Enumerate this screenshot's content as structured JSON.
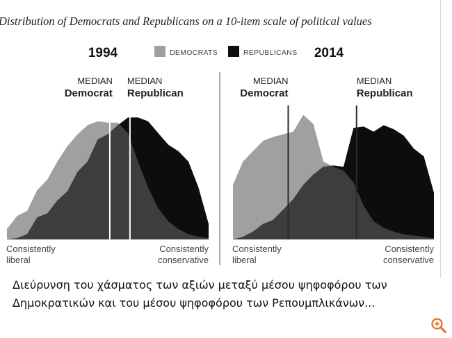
{
  "chart_data": {
    "type": "area",
    "title": "Distribution of Democrats and Republicans on a 10-item scale of political values",
    "legend": [
      {
        "name": "DEMOCRATS",
        "color": "#a0a0a0"
      },
      {
        "name": "REPUBLICANS",
        "color": "#0d0d0d"
      }
    ],
    "overlap_color": "#3d3d3d",
    "axis_left_label": [
      "Consistently",
      "liberal"
    ],
    "axis_right_label": [
      "Consistently",
      "conservative"
    ],
    "xlim": [
      0,
      20
    ],
    "ylim": [
      0,
      1
    ],
    "panels": [
      {
        "year": "1994",
        "median_democrat": 10.2,
        "median_republican": 12.2,
        "median_democrat_label": [
          "MEDIAN",
          "Democrat"
        ],
        "median_republican_label": [
          "MEDIAN",
          "Republican"
        ],
        "series": [
          {
            "name": "Democrats",
            "x": [
              0,
              1,
              2,
              3,
              4,
              5,
              6,
              7,
              8,
              9,
              10,
              11,
              12,
              13,
              14,
              15,
              16,
              17,
              18,
              19,
              20
            ],
            "values": [
              0.08,
              0.18,
              0.22,
              0.38,
              0.46,
              0.6,
              0.72,
              0.81,
              0.88,
              0.91,
              0.9,
              0.9,
              0.82,
              0.6,
              0.4,
              0.24,
              0.14,
              0.08,
              0.04,
              0.02,
              0.01
            ]
          },
          {
            "name": "Republicans",
            "x": [
              0,
              1,
              2,
              3,
              4,
              5,
              6,
              7,
              8,
              9,
              10,
              11,
              12,
              13,
              14,
              15,
              16,
              17,
              18,
              19,
              20
            ],
            "values": [
              0.0,
              0.01,
              0.04,
              0.17,
              0.2,
              0.3,
              0.37,
              0.52,
              0.6,
              0.77,
              0.81,
              0.88,
              0.94,
              0.94,
              0.91,
              0.82,
              0.73,
              0.68,
              0.6,
              0.4,
              0.12
            ]
          }
        ]
      },
      {
        "year": "2014",
        "median_democrat": 5.5,
        "median_republican": 12.3,
        "median_democrat_label": [
          "MEDIAN",
          "Democrat"
        ],
        "median_republican_label": [
          "MEDIAN",
          "Republican"
        ],
        "series": [
          {
            "name": "Democrats",
            "x": [
              0,
              1,
              2,
              3,
              4,
              5,
              6,
              7,
              8,
              9,
              10,
              11,
              12,
              13,
              14,
              15,
              16,
              17,
              18,
              19,
              20
            ],
            "values": [
              0.42,
              0.6,
              0.68,
              0.76,
              0.79,
              0.81,
              0.83,
              0.96,
              0.89,
              0.6,
              0.56,
              0.53,
              0.44,
              0.26,
              0.14,
              0.09,
              0.06,
              0.04,
              0.03,
              0.02,
              0.01
            ]
          },
          {
            "name": "Republicans",
            "x": [
              0,
              1,
              2,
              3,
              4,
              5,
              6,
              7,
              8,
              9,
              10,
              11,
              12,
              13,
              14,
              15,
              16,
              17,
              18,
              19,
              20
            ],
            "values": [
              0.0,
              0.02,
              0.06,
              0.12,
              0.15,
              0.23,
              0.31,
              0.42,
              0.5,
              0.56,
              0.57,
              0.56,
              0.86,
              0.87,
              0.83,
              0.88,
              0.85,
              0.8,
              0.7,
              0.64,
              0.36
            ]
          }
        ]
      }
    ]
  },
  "caption": {
    "line1": "Διεύρυνση του χάσματος των αξιών μεταξύ μέσου ψηφοφόρου των",
    "line2": "Δημοκρατικών και του μέσου ψηφοφόρου των Ρεπουμπλικάνων..."
  },
  "zoom": {
    "icon": "zoom-in-icon",
    "color": "#e8752a"
  }
}
